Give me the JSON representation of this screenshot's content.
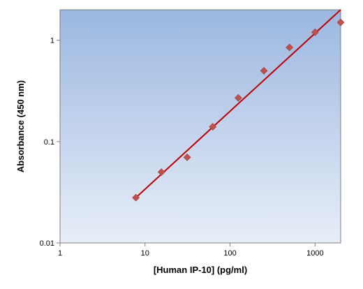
{
  "chart_data": {
    "type": "scatter",
    "title": "",
    "xlabel": "[Human IP-10] (pg/ml)",
    "ylabel": "Absorbance (450 nm)",
    "x_scale": "log",
    "y_scale": "log",
    "xlim": [
      1,
      2000
    ],
    "ylim": [
      0.01,
      2
    ],
    "x_ticks": [
      1,
      10,
      100,
      1000
    ],
    "x_tick_labels": [
      "1",
      "10",
      "100",
      "1000"
    ],
    "y_ticks": [
      0.01,
      0.1,
      1
    ],
    "y_tick_labels": [
      "0.01",
      "0.1",
      "1"
    ],
    "grid": false,
    "legend": "none",
    "series": [
      {
        "kind": "points",
        "marker": "diamond",
        "color": "#C0504D",
        "x": [
          7.8,
          15.6,
          31.3,
          62.5,
          125,
          250,
          500,
          1000,
          2000
        ],
        "y": [
          0.028,
          0.05,
          0.07,
          0.14,
          0.27,
          0.5,
          0.85,
          1.2,
          1.5
        ]
      },
      {
        "kind": "fit-line",
        "color": "#C00000",
        "x": [
          7.8,
          2000
        ],
        "y": [
          0.028,
          2.0
        ]
      }
    ],
    "background_gradient": [
      "#9BB7E0",
      "#E8EEF8"
    ]
  }
}
